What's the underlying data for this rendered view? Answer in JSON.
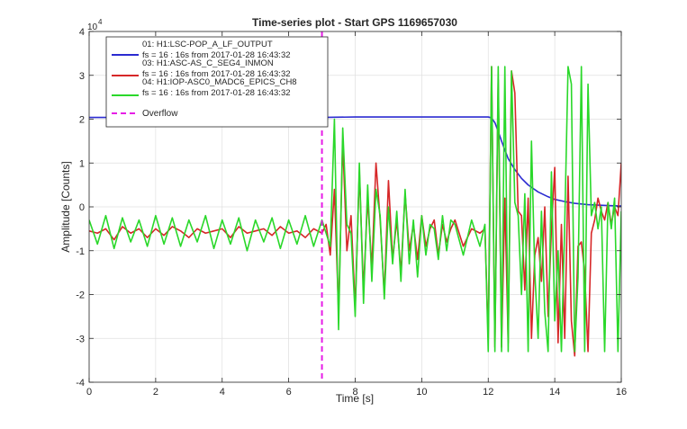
{
  "chart_data": {
    "type": "line",
    "title": "Time-series plot - Start GPS 1169657030",
    "xlabel": "Time [s]",
    "ylabel": "Amplitude [Counts]",
    "y_exponent_base": "10",
    "y_exponent_power": "4",
    "xlim": [
      0,
      16
    ],
    "ylim": [
      -4,
      4
    ],
    "xticks": [
      "0",
      "2",
      "4",
      "6",
      "8",
      "10",
      "12",
      "14",
      "16"
    ],
    "yticks": [
      "-4",
      "-3",
      "-2",
      "-1",
      "0",
      "1",
      "2",
      "3",
      "4"
    ],
    "grid": true,
    "legend_position": "top-left",
    "overflow_marker": {
      "name": "Overflow",
      "x": 7.0,
      "color": "#e61ee6"
    },
    "series": [
      {
        "name": "01: H1:LSC-POP_A_LF_OUTPUT",
        "subtitle": "fs = 16 : 16s from 2017-01-28 16:43:32",
        "color": "#2b2bd1",
        "x": [
          0,
          1,
          2,
          3,
          4,
          5,
          6,
          7,
          8,
          9,
          10,
          11,
          12,
          12.1,
          12.2,
          12.3,
          12.4,
          12.5,
          12.6,
          12.8,
          13.0,
          13.2,
          13.5,
          13.8,
          14.0,
          14.3,
          14.6,
          15.0,
          15.3,
          15.6,
          16.0
        ],
        "values": [
          2.04,
          2.04,
          2.04,
          2.04,
          2.04,
          2.04,
          2.04,
          2.04,
          2.05,
          2.05,
          2.05,
          2.05,
          2.05,
          2.03,
          1.92,
          1.72,
          1.5,
          1.3,
          1.1,
          0.85,
          0.65,
          0.5,
          0.34,
          0.23,
          0.17,
          0.12,
          0.08,
          0.05,
          0.04,
          0.03,
          0.02
        ]
      },
      {
        "name": "03: H1:ASC-AS_C_SEG4_INMON",
        "subtitle": "fs = 16 : 16s from 2017-01-28 16:43:32",
        "color": "#d62728",
        "x": [
          0,
          0.25,
          0.5,
          0.75,
          1,
          1.25,
          1.5,
          1.75,
          2,
          2.25,
          2.5,
          2.75,
          3,
          3.25,
          3.5,
          3.75,
          4,
          4.25,
          4.5,
          4.75,
          5,
          5.25,
          5.5,
          5.75,
          6,
          6.25,
          6.5,
          6.75,
          7,
          7.125,
          7.25,
          7.375,
          7.5,
          7.625,
          7.75,
          7.875,
          8,
          8.125,
          8.25,
          8.375,
          8.5,
          8.625,
          8.75,
          8.875,
          9,
          9.125,
          9.25,
          9.375,
          9.5,
          9.625,
          9.75,
          9.875,
          10,
          10.125,
          10.25,
          10.375,
          10.5,
          10.625,
          10.75,
          10.875,
          11,
          11.25,
          11.5,
          11.75,
          11.9,
          12.0,
          12.1,
          12.2,
          12.3,
          12.4,
          12.5,
          12.6,
          12.7,
          12.8,
          12.9,
          13.0,
          13.1,
          13.2,
          13.3,
          13.4,
          13.5,
          13.6,
          13.7,
          13.8,
          13.9,
          14.0,
          14.1,
          14.2,
          14.3,
          14.4,
          14.5,
          14.6,
          14.7,
          14.8,
          14.9,
          15.0,
          15.1,
          15.2,
          15.3,
          15.4,
          15.5,
          15.6,
          15.7,
          15.8,
          15.9,
          16.0
        ],
        "values": [
          -0.55,
          -0.6,
          -0.5,
          -0.75,
          -0.45,
          -0.6,
          -0.5,
          -0.7,
          -0.5,
          -0.65,
          -0.45,
          -0.55,
          -0.7,
          -0.5,
          -0.6,
          -0.55,
          -0.5,
          -0.7,
          -0.45,
          -0.6,
          -0.55,
          -0.5,
          -0.65,
          -0.45,
          -0.6,
          -0.55,
          -0.7,
          -0.5,
          -0.6,
          -0.4,
          -1.1,
          0.4,
          -2.4,
          1.5,
          -1.0,
          -0.2,
          -2.3,
          0.8,
          -1.9,
          0.2,
          -1.4,
          1.0,
          -0.3,
          -2.0,
          0.6,
          -1.2,
          -0.3,
          -1.5,
          0.3,
          -1.0,
          -0.4,
          -1.2,
          -0.2,
          -0.9,
          -0.5,
          -0.3,
          -1.1,
          -0.4,
          -0.8,
          -0.5,
          -0.3,
          -0.9,
          -0.5,
          -0.6,
          -0.5,
          -3.0,
          3.2,
          -3.2,
          2.9,
          -3.2,
          0.2,
          -3.1,
          3.1,
          2.6,
          -0.1,
          -0.2,
          -1.9,
          0.2,
          -3.0,
          -1.1,
          -0.7,
          -1.7,
          0.0,
          -2.5,
          -0.5,
          0.9,
          -3.1,
          -0.4,
          -3.0,
          0.7,
          -2.6,
          -3.4,
          -0.9,
          -0.8,
          -1.5,
          -3.3,
          -0.6,
          -0.3,
          0.2,
          -0.1,
          -0.3,
          0.1,
          -0.4,
          0.0,
          -0.2,
          1.0
        ]
      },
      {
        "name": "04: H1:IOP-ASC0_MADC6_EPICS_CH8",
        "subtitle": "fs = 16 : 16s from 2017-01-28 16:43:32",
        "color": "#2ad82a",
        "x": [
          0,
          0.25,
          0.5,
          0.75,
          1,
          1.25,
          1.5,
          1.75,
          2,
          2.25,
          2.5,
          2.75,
          3,
          3.25,
          3.5,
          3.75,
          4,
          4.25,
          4.5,
          4.75,
          5,
          5.25,
          5.5,
          5.75,
          6,
          6.25,
          6.5,
          6.75,
          7,
          7.125,
          7.25,
          7.375,
          7.5,
          7.625,
          7.75,
          7.875,
          8,
          8.125,
          8.25,
          8.375,
          8.5,
          8.625,
          8.75,
          8.875,
          9,
          9.125,
          9.25,
          9.375,
          9.5,
          9.625,
          9.75,
          9.875,
          10,
          10.125,
          10.25,
          10.375,
          10.5,
          10.625,
          10.75,
          10.875,
          11,
          11.25,
          11.5,
          11.75,
          11.9,
          12.0,
          12.1,
          12.2,
          12.3,
          12.4,
          12.5,
          12.6,
          12.7,
          12.8,
          12.9,
          13.0,
          13.1,
          13.2,
          13.3,
          13.4,
          13.5,
          13.6,
          13.7,
          13.8,
          13.9,
          14.0,
          14.1,
          14.2,
          14.3,
          14.4,
          14.5,
          14.6,
          14.7,
          14.8,
          14.9,
          15.0,
          15.1,
          15.2,
          15.3,
          15.4,
          15.5,
          15.6,
          15.7,
          15.8,
          15.9,
          16.0
        ],
        "values": [
          -0.3,
          -0.85,
          -0.2,
          -0.95,
          -0.25,
          -0.8,
          -0.3,
          -0.9,
          -0.2,
          -0.85,
          -0.25,
          -0.9,
          -0.3,
          -0.8,
          -0.2,
          -0.95,
          -0.3,
          -0.85,
          -0.25,
          -1.0,
          -0.3,
          -0.8,
          -0.25,
          -0.95,
          -0.3,
          -0.85,
          -0.2,
          -0.9,
          -0.3,
          -0.6,
          -0.9,
          2.0,
          -2.8,
          1.8,
          -0.4,
          -0.6,
          -2.5,
          1.0,
          -2.2,
          0.5,
          -1.7,
          0.4,
          -0.2,
          -2.1,
          0.0,
          -1.3,
          -0.1,
          -1.7,
          0.4,
          -1.3,
          -0.3,
          -1.6,
          -0.2,
          -1.1,
          -0.4,
          -0.5,
          -1.2,
          -0.2,
          -1.0,
          -0.3,
          -0.4,
          -1.1,
          -0.3,
          -0.9,
          -0.4,
          -3.3,
          3.2,
          -3.3,
          3.2,
          -3.3,
          3.2,
          -3.3,
          3.1,
          0.1,
          -0.2,
          -2.0,
          0.3,
          -3.3,
          1.5,
          -1.5,
          -3.0,
          -0.1,
          -2.4,
          -3.3,
          0.8,
          -2.6,
          -1.0,
          -3.3,
          -0.4,
          3.2,
          2.8,
          -3.3,
          -1.6,
          3.2,
          -3.3,
          2.8,
          -0.2,
          0.1,
          -0.5,
          0.0,
          -3.3,
          0.1,
          -0.5,
          0.2,
          -3.3,
          -0.1
        ]
      }
    ]
  }
}
